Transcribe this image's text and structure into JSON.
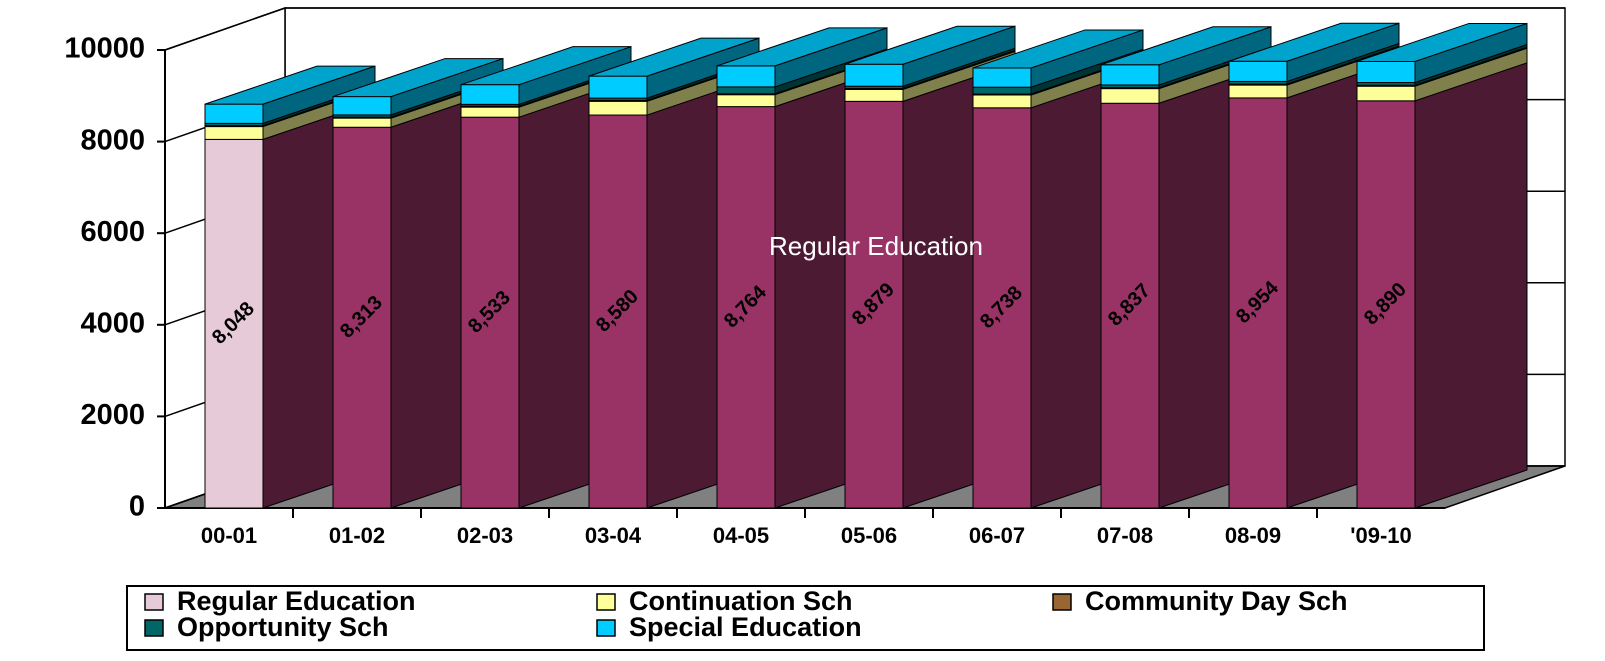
{
  "chart_data": {
    "type": "bar3d-stacked",
    "categories": [
      "00-01",
      "01-02",
      "02-03",
      "03-04",
      "04-05",
      "05-06",
      "06-07",
      "07-08",
      "08-09",
      "'09-10"
    ],
    "series": [
      {
        "name": "Regular Education",
        "color": "#993366",
        "values": [
          8048,
          8313,
          8533,
          8580,
          8764,
          8879,
          8738,
          8837,
          8954,
          8890
        ],
        "value_labels": [
          "8,048",
          "8,313",
          "8,533",
          "8,580",
          "8,764",
          "8,879",
          "8,738",
          "8,837",
          "8,954",
          "8,890"
        ]
      },
      {
        "name": "Continuation Sch",
        "color": "#ffff99",
        "values": [
          280,
          200,
          220,
          300,
          260,
          260,
          280,
          320,
          280,
          320
        ]
      },
      {
        "name": "Community Day Sch",
        "color": "#996633",
        "values": [
          20,
          20,
          20,
          20,
          20,
          20,
          20,
          20,
          20,
          20
        ]
      },
      {
        "name": "Opportunity Sch",
        "color": "#006666",
        "values": [
          50,
          50,
          40,
          50,
          150,
          50,
          150,
          60,
          60,
          60
        ]
      },
      {
        "name": "Special Education",
        "color": "#00ccff",
        "values": [
          420,
          400,
          430,
          480,
          460,
          480,
          420,
          440,
          440,
          460
        ]
      }
    ],
    "highlight": {
      "index": 0,
      "color": "#e6cad8"
    },
    "annotation": "Regular Education",
    "ylim": [
      0,
      10000
    ],
    "yticks": [
      0,
      2000,
      4000,
      6000,
      8000,
      10000
    ],
    "grid": true
  }
}
